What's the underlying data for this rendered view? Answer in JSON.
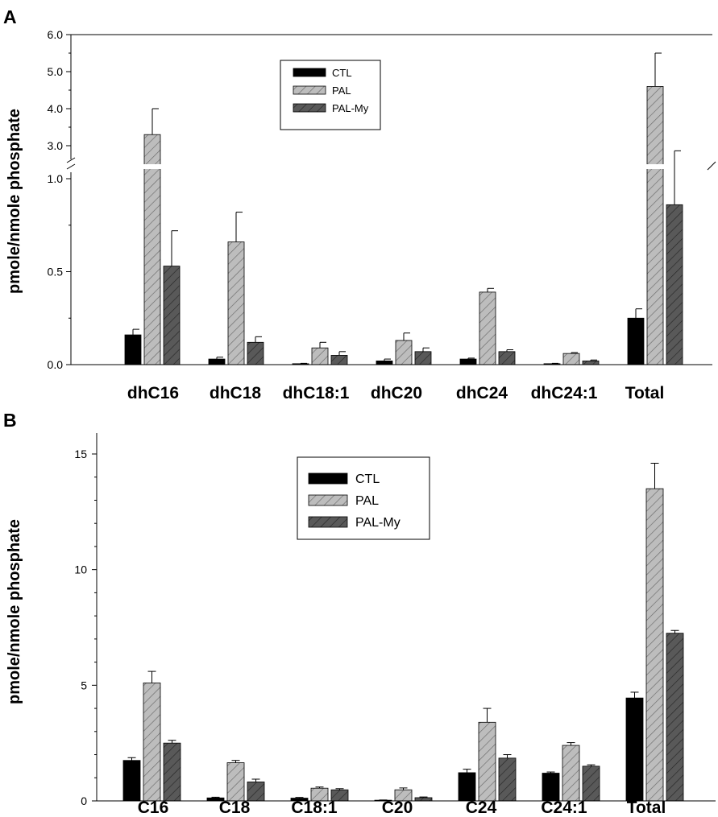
{
  "chart_data": [
    {
      "panel": "A",
      "type": "bar",
      "ylabel": "pmole/nmole phosphate",
      "categories": [
        "dhC16",
        "dhC18",
        "dhC18:1",
        "dhC20",
        "dhC24",
        "dhC24:1",
        "Total"
      ],
      "series": [
        {
          "name": "CTL",
          "values": [
            0.16,
            0.03,
            0.005,
            0.02,
            0.03,
            0.005,
            0.25
          ],
          "errors": [
            0.03,
            0.01,
            0.002,
            0.01,
            0.005,
            0.002,
            0.05
          ]
        },
        {
          "name": "PAL",
          "values": [
            3.3,
            0.66,
            0.09,
            0.13,
            0.39,
            0.06,
            4.6
          ],
          "errors": [
            0.7,
            0.16,
            0.03,
            0.04,
            0.02,
            0.005,
            0.9
          ]
        },
        {
          "name": "PAL-My",
          "values": [
            0.53,
            0.12,
            0.05,
            0.07,
            0.07,
            0.02,
            0.86
          ],
          "errors": [
            0.19,
            0.03,
            0.02,
            0.02,
            0.01,
            0.005,
            0.29
          ]
        }
      ],
      "colors": {
        "CTL": "#000000",
        "PAL": "#bdbdbd",
        "PAL-My": "#595959"
      },
      "axis_break": [
        1.2,
        2.4
      ],
      "yticks_lower": [
        "0.0",
        "0.5",
        "1.0"
      ],
      "yticks_upper": [
        "3.0",
        "4.0",
        "5.0",
        "6.0"
      ],
      "ylim": [
        0,
        6.0
      ],
      "legend_placement": "top-center"
    },
    {
      "panel": "B",
      "type": "bar",
      "ylabel": "pmole/nmole phosphate",
      "categories": [
        "C16",
        "C18",
        "C18:1",
        "C20",
        "C24",
        "C24:1",
        "Total"
      ],
      "series": [
        {
          "name": "CTL",
          "values": [
            1.75,
            0.13,
            0.12,
            0.03,
            1.22,
            1.2,
            4.45
          ],
          "errors": [
            0.12,
            0.03,
            0.03,
            0.01,
            0.15,
            0.05,
            0.25
          ]
        },
        {
          "name": "PAL",
          "values": [
            5.1,
            1.65,
            0.55,
            0.48,
            3.4,
            2.4,
            13.5
          ],
          "errors": [
            0.5,
            0.1,
            0.05,
            0.08,
            0.6,
            0.12,
            1.1
          ]
        },
        {
          "name": "PAL-My",
          "values": [
            2.5,
            0.82,
            0.48,
            0.14,
            1.85,
            1.5,
            7.25
          ],
          "errors": [
            0.12,
            0.12,
            0.05,
            0.03,
            0.15,
            0.06,
            0.12
          ]
        }
      ],
      "colors": {
        "CTL": "#000000",
        "PAL": "#bdbdbd",
        "PAL-My": "#595959"
      },
      "yticks": [
        "0",
        "5",
        "10",
        "15"
      ],
      "ylim": [
        0,
        16
      ],
      "legend_placement": "top-center"
    }
  ]
}
